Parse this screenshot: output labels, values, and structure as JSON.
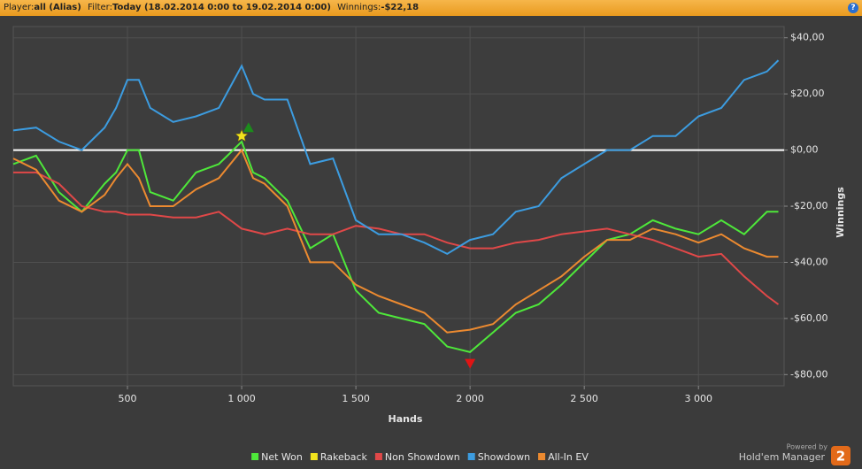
{
  "header": {
    "player_label": "Player:",
    "player": "all (Alias)",
    "filter_label": "Filter:",
    "filter": "Today (18.02.2014 0:00 to 19.02.2014 0:00)",
    "winnings_label": "Winnings:",
    "winnings": "-$22,18",
    "help": "?"
  },
  "footer": {
    "powered_by": "Powered by",
    "brand": "Hold'em Manager",
    "logo": "2"
  },
  "chart_data": {
    "type": "line",
    "x_label": "Hands",
    "y_label": "Winnings",
    "xlim": [
      0,
      3375
    ],
    "ylim": [
      -84,
      44
    ],
    "xticks": [
      500,
      {
        "value": 1000,
        "label": "1 000"
      },
      {
        "value": 1500,
        "label": "1 500"
      },
      {
        "value": 2000,
        "label": "2 000"
      },
      {
        "value": 2500,
        "label": "2 500"
      },
      {
        "value": 3000,
        "label": "3 000"
      }
    ],
    "yticks": [
      {
        "value": 40,
        "label": "$40,00"
      },
      {
        "value": 20,
        "label": "$20,00"
      },
      {
        "value": 0,
        "label": "$0,00"
      },
      {
        "value": -20,
        "label": "-$20,00"
      },
      {
        "value": -40,
        "label": "-$40,00"
      },
      {
        "value": -60,
        "label": "-$60,00"
      },
      {
        "value": -80,
        "label": "-$80,00"
      }
    ],
    "grid": true,
    "zero_line": true,
    "legend": "bottom",
    "x": [
      0,
      100,
      200,
      300,
      400,
      450,
      500,
      550,
      600,
      700,
      800,
      900,
      1000,
      1050,
      1100,
      1200,
      1300,
      1400,
      1500,
      1600,
      1700,
      1800,
      1900,
      2000,
      2100,
      2200,
      2300,
      2400,
      2500,
      2600,
      2700,
      2800,
      2900,
      3000,
      3100,
      3200,
      3300,
      3350
    ],
    "series": [
      {
        "name": "Net Won",
        "color": "#4ee83a",
        "values": [
          -5,
          -2,
          -15,
          -22,
          -12,
          -8,
          0,
          0,
          -15,
          -18,
          -8,
          -5,
          3,
          -8,
          -10,
          -18,
          -35,
          -30,
          -50,
          -58,
          -60,
          -62,
          -70,
          -72,
          -65,
          -58,
          -55,
          -48,
          -40,
          -32,
          -30,
          -25,
          -28,
          -30,
          -25,
          -30,
          -22,
          -22
        ]
      },
      {
        "name": "Rakeback",
        "color": "#f2e41e",
        "marker": "star",
        "x": [
          1000
        ],
        "values": [
          5
        ]
      },
      {
        "name": "Non Showdown",
        "color": "#e04848",
        "values": [
          -8,
          -8,
          -12,
          -20,
          -22,
          -22,
          -23,
          -23,
          -23,
          -24,
          -24,
          -22,
          -28,
          -29,
          -30,
          -28,
          -30,
          -30,
          -27,
          -28,
          -30,
          -30,
          -33,
          -35,
          -35,
          -33,
          -32,
          -30,
          -29,
          -28,
          -30,
          -32,
          -35,
          -38,
          -37,
          -45,
          -52,
          -55
        ]
      },
      {
        "name": "Showdown",
        "color": "#3c9ce0",
        "values": [
          7,
          8,
          3,
          0,
          8,
          15,
          25,
          25,
          15,
          10,
          12,
          15,
          30,
          20,
          18,
          18,
          -5,
          -3,
          -25,
          -30,
          -30,
          -33,
          -37,
          -32,
          -30,
          -22,
          -20,
          -10,
          -5,
          0,
          0,
          5,
          5,
          12,
          15,
          25,
          28,
          32
        ]
      },
      {
        "name": "All-In EV",
        "color": "#ec8a30",
        "values": [
          -3,
          -7,
          -18,
          -22,
          -16,
          -10,
          -5,
          -10,
          -20,
          -20,
          -14,
          -10,
          0,
          -10,
          -12,
          -20,
          -40,
          -40,
          -48,
          -52,
          -55,
          -58,
          -65,
          -64,
          -62,
          -55,
          -50,
          -45,
          -38,
          -32,
          -32,
          -28,
          -30,
          -33,
          -30,
          -35,
          -38,
          -38
        ]
      }
    ],
    "markers": [
      {
        "x": 1030,
        "y": 8,
        "shape": "triangle-up",
        "color": "#1c8c1c"
      },
      {
        "x": 2000,
        "y": -76,
        "shape": "triangle-down",
        "color": "#e01414"
      }
    ]
  }
}
